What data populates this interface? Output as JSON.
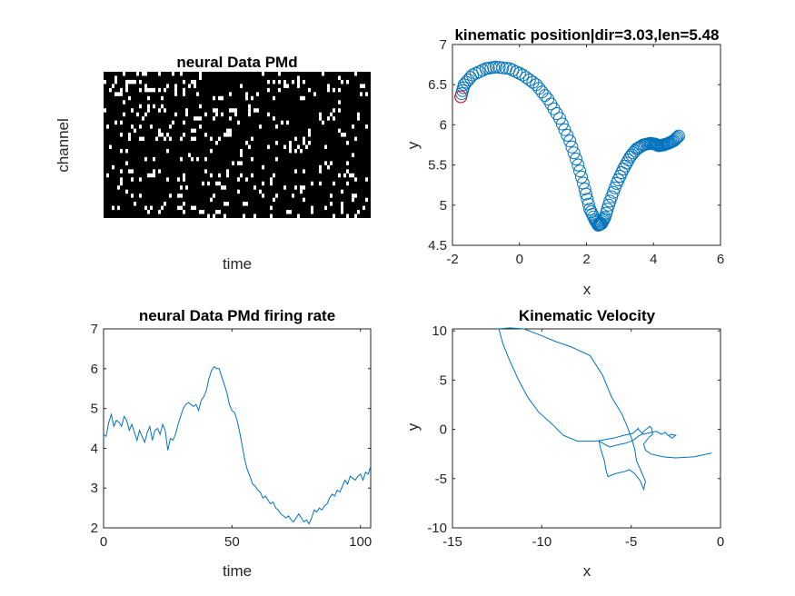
{
  "colors": {
    "line": "#0072bd",
    "highlight": "#d62728",
    "raster_bg": "#000000",
    "raster_spike": "#ffffff",
    "axis": "#262626"
  },
  "chart_data": [
    {
      "type": "heatmap",
      "title": "neural Data PMd",
      "xlabel": "time",
      "ylabel": "channel",
      "n_rows": 36,
      "n_cols": 98,
      "seed": 7,
      "spike_density": 0.085,
      "grid": false
    },
    {
      "type": "scatter",
      "title": "kinematic position|dir=3.03,len=5.48",
      "xlabel": "x",
      "ylabel": "y",
      "xlim": [
        -2,
        6
      ],
      "ylim": [
        4.5,
        7
      ],
      "x_ticks": [
        "-2",
        "0",
        "2",
        "4",
        "6"
      ],
      "y_ticks": [
        "4.5",
        "5",
        "5.5",
        "6",
        "6.5",
        "7"
      ],
      "marker": "circle",
      "path_x": [
        -1.75,
        -1.65,
        -1.4,
        -1.0,
        -0.7,
        -0.3,
        0.1,
        0.5,
        0.85,
        1.2,
        1.5,
        1.75,
        1.95,
        2.1,
        2.25,
        2.35,
        2.45,
        2.55,
        2.7,
        2.9,
        3.1,
        3.3,
        3.5,
        3.7,
        3.9,
        4.05,
        4.15,
        4.3,
        4.45,
        4.6,
        4.75
      ],
      "path_y": [
        6.35,
        6.5,
        6.62,
        6.7,
        6.72,
        6.7,
        6.62,
        6.5,
        6.32,
        6.08,
        5.8,
        5.5,
        5.2,
        4.95,
        4.82,
        4.75,
        4.77,
        4.85,
        5.05,
        5.27,
        5.45,
        5.6,
        5.7,
        5.75,
        5.77,
        5.76,
        5.74,
        5.75,
        5.77,
        5.8,
        5.86
      ],
      "points_per_segment": 4,
      "start_point": [
        -1.75,
        6.35
      ],
      "grid": false
    },
    {
      "type": "line",
      "title": "neural Data PMd firing rate",
      "xlabel": "time",
      "ylabel": "",
      "xlim": [
        0,
        104
      ],
      "ylim": [
        2,
        7
      ],
      "x_ticks": [
        "0",
        "50",
        "100"
      ],
      "y_ticks": [
        "2",
        "3",
        "4",
        "5",
        "6",
        "7"
      ],
      "x": [
        0,
        1,
        2,
        3,
        4,
        5,
        6,
        7,
        8,
        9,
        10,
        11,
        12,
        13,
        14,
        15,
        16,
        17,
        18,
        19,
        20,
        21,
        22,
        23,
        24,
        25,
        26,
        27,
        28,
        29,
        30,
        31,
        32,
        33,
        34,
        35,
        36,
        37,
        38,
        39,
        40,
        41,
        42,
        43,
        44,
        45,
        46,
        47,
        48,
        49,
        50,
        51,
        52,
        53,
        54,
        55,
        56,
        57,
        58,
        59,
        60,
        61,
        62,
        63,
        64,
        65,
        66,
        67,
        68,
        69,
        70,
        71,
        72,
        73,
        74,
        75,
        76,
        77,
        78,
        79,
        80,
        81,
        82,
        83,
        84,
        85,
        86,
        87,
        88,
        89,
        90,
        91,
        92,
        93,
        94,
        95,
        96,
        97,
        98,
        99,
        100,
        101,
        102,
        103,
        104
      ],
      "values": [
        4.35,
        4.3,
        4.65,
        4.85,
        4.55,
        4.7,
        4.65,
        4.55,
        4.8,
        4.7,
        4.45,
        4.6,
        4.4,
        4.2,
        4.45,
        4.3,
        4.15,
        4.4,
        4.55,
        4.2,
        4.45,
        4.5,
        4.35,
        4.6,
        4.45,
        3.95,
        4.25,
        4.2,
        4.35,
        4.6,
        4.8,
        5.0,
        5.1,
        5.15,
        5.1,
        5.05,
        5.1,
        4.95,
        5.2,
        5.3,
        5.45,
        5.75,
        5.95,
        6.05,
        6.0,
        6.0,
        5.8,
        5.6,
        5.4,
        5.1,
        4.95,
        4.9,
        4.7,
        4.4,
        4.05,
        3.7,
        3.45,
        3.3,
        3.1,
        3.05,
        2.95,
        2.9,
        2.75,
        2.8,
        2.7,
        2.6,
        2.65,
        2.5,
        2.45,
        2.35,
        2.3,
        2.25,
        2.3,
        2.2,
        2.15,
        2.25,
        2.35,
        2.25,
        2.15,
        2.2,
        2.1,
        2.25,
        2.45,
        2.4,
        2.5,
        2.45,
        2.55,
        2.6,
        2.75,
        2.85,
        2.8,
        2.95,
        2.9,
        3.05,
        3.2,
        3.1,
        3.3,
        3.25,
        3.2,
        3.3,
        3.35,
        3.2,
        3.4,
        3.35,
        3.55
      ],
      "grid": false
    },
    {
      "type": "line",
      "title": "Kinematic Velocity",
      "xlabel": "x",
      "ylabel": "y",
      "xlim": [
        -15,
        0
      ],
      "ylim": [
        -10,
        10.2
      ],
      "x_ticks": [
        "-15",
        "-10",
        "-5",
        "0"
      ],
      "y_ticks": [
        "-10",
        "-5",
        "0",
        "5",
        "10"
      ],
      "x": [
        -0.5,
        -1.5,
        -2.5,
        -3.2,
        -3.9,
        -4.2,
        -4.3,
        -4.0,
        -3.8,
        -3.85,
        -3.95,
        -4.1,
        -4.3,
        -4.4,
        -4.6,
        -4.8,
        -5.0,
        -5.3,
        -5.8,
        -6.2,
        -6.5,
        -6.8,
        -6.7,
        -6.5,
        -6.4,
        -6.3,
        -5.9,
        -5.4,
        -5.1,
        -4.8,
        -4.5,
        -4.3,
        -4.2,
        -4.5,
        -4.7,
        -4.8,
        -5.0,
        -5.2,
        -5.5,
        -6.1,
        -6.6,
        -7.3,
        -8.4,
        -9.2,
        -10.0,
        -11.0,
        -11.8,
        -12.4,
        -12.2,
        -11.8,
        -11.3,
        -10.8,
        -10.2,
        -9.4,
        -8.8,
        -8.0,
        -7.0,
        -6.0,
        -5.4,
        -4.9,
        -4.6,
        -4.6,
        -4.3,
        -4.1,
        -3.6,
        -3.3,
        -3.1,
        -2.95,
        -2.7,
        -2.5,
        -2.8,
        -2.9
      ],
      "values": [
        -2.4,
        -2.8,
        -2.9,
        -2.8,
        -2.5,
        -2.1,
        -1.5,
        -0.8,
        -0.5,
        0.1,
        0.3,
        0.1,
        -0.2,
        -0.5,
        -0.7,
        -1.0,
        -1.2,
        -1.4,
        -1.6,
        -1.8,
        -1.5,
        -1.2,
        -2.0,
        -3.2,
        -4.2,
        -4.8,
        -4.5,
        -4.3,
        -4.1,
        -4.5,
        -5.2,
        -6.1,
        -5.3,
        -4.0,
        -3.2,
        -2.0,
        -0.8,
        0.2,
        1.5,
        3.3,
        5.5,
        7.5,
        8.4,
        8.9,
        9.5,
        10.2,
        10.3,
        10.2,
        8.8,
        7.0,
        5.0,
        3.3,
        1.8,
        0.5,
        -0.6,
        -1.2,
        -1.2,
        -0.9,
        -0.6,
        -0.4,
        0.1,
        0.0,
        -0.5,
        -0.4,
        -0.2,
        -0.5,
        -0.3,
        -0.6,
        -0.9,
        -0.6,
        -0.5,
        -0.7
      ],
      "grid": false
    }
  ]
}
